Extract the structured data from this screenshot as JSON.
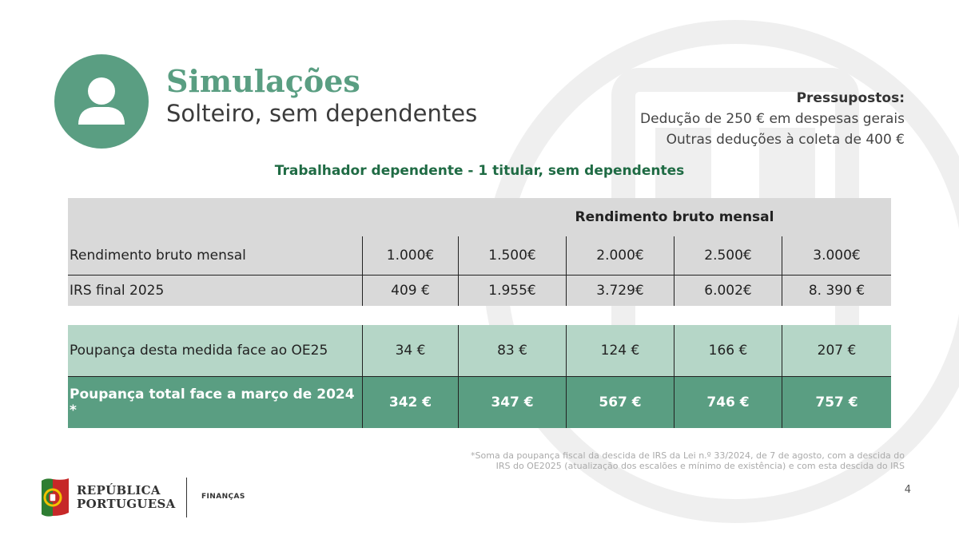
{
  "header": {
    "title": "Simulações",
    "subtitle": "Solteiro, sem dependentes"
  },
  "assumptions": {
    "heading": "Pressupostos:",
    "line1": "Dedução de 250 € em despesas gerais",
    "line2": "Outras deduções à coleta de 400 €"
  },
  "caption": "Trabalhador dependente - 1 titular, sem dependentes",
  "table": {
    "group_header": "Rendimento bruto mensal",
    "rows": [
      {
        "label": "Rendimento bruto mensal",
        "values": [
          "1.000€",
          "1.500€",
          "2.000€",
          "2.500€",
          "3.000€"
        ]
      },
      {
        "label": "IRS final 2025",
        "values": [
          "409 €",
          "1.955€",
          "3.729€",
          "6.002€",
          "8. 390 €"
        ]
      },
      {
        "label": "Poupança desta medida face ao OE25",
        "values": [
          "34 €",
          "83 €",
          "124 €",
          "166 €",
          "207 €"
        ]
      },
      {
        "label": "Poupança total face a março de 2024 *",
        "values": [
          "342 €",
          "347 €",
          "567 €",
          "746 €",
          "757 €"
        ]
      }
    ]
  },
  "footnote": {
    "line1": "*Soma da poupança fiscal da descida de IRS da Lei n.º 33/2024, de 7 de agosto, com a descida do",
    "line2": "IRS do OE2025 (atualização dos escalões e mínimo de existência) e com esta descida do IRS"
  },
  "page_number": "4",
  "footer": {
    "brand_line1": "REPÚBLICA",
    "brand_line2": "PORTUGUESA",
    "ministry": "FINANÇAS"
  },
  "colors": {
    "accent": "#5a9e82",
    "mint": "#b5d6c7",
    "grey": "#d9d9d9",
    "caption": "#1f6b44"
  },
  "icons": [
    "user-icon",
    "coat-of-arms-watermark",
    "portugal-flag-logo"
  ]
}
